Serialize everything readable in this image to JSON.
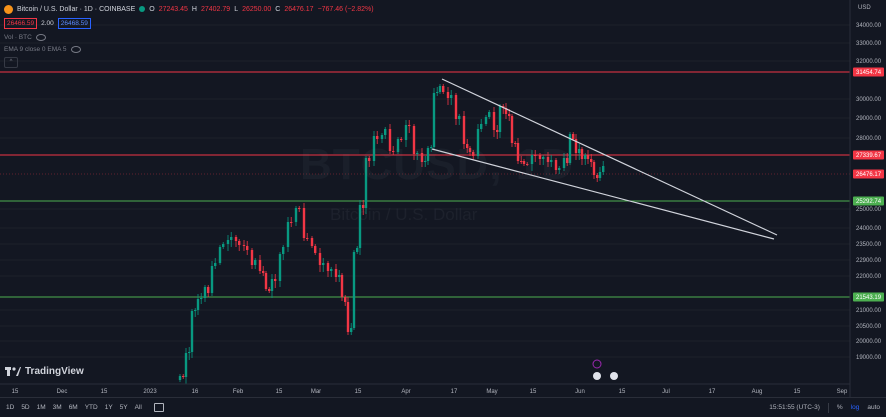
{
  "header": {
    "symbol_title": "Bitcoin / U.S. Dollar · 1D · COINBASE",
    "ohlc": {
      "o_label": "O",
      "o": "27243.45",
      "h_label": "H",
      "h": "27402.79",
      "l_label": "L",
      "l": "26250.00",
      "c_label": "C",
      "c": "26476.17",
      "change": "−767.46 (−2.82%)"
    },
    "sell_price": "26466.59",
    "spread": "2.00",
    "buy_price": "26468.59",
    "indicator_1": "Vol · BTC",
    "indicator_2": "EMA 9 close 0 EMA 5"
  },
  "watermark": {
    "line1": "BTCUSD, 1D",
    "line2": "Bitcoin / U.S. Dollar"
  },
  "logo_text": "TradingView",
  "price_axis": {
    "currency": "USD",
    "ticks": [
      "34000.00",
      "33000.00",
      "32000.00",
      "30000.00",
      "29000.00",
      "28000.00",
      "25000.00",
      "24000.00",
      "23500.00",
      "22900.00",
      "22000.00",
      "21000.00",
      "20500.00",
      "20000.00",
      "19000.00"
    ],
    "tags": [
      {
        "label": "31454.74",
        "color": "#f23645",
        "kind": "red_line"
      },
      {
        "label": "27339.67",
        "color": "#f23645",
        "kind": "red_line"
      },
      {
        "label": "26476.17",
        "color": "#f23645",
        "kind": "current"
      },
      {
        "label": "25292.74",
        "color": "#4caf50",
        "kind": "green_line"
      },
      {
        "label": "21543.19",
        "color": "#4caf50",
        "kind": "green_line"
      }
    ]
  },
  "time_axis": {
    "labels": [
      "15",
      "Dec",
      "15",
      "2023",
      "16",
      "Feb",
      "15",
      "Mar",
      "15",
      "Apr",
      "17",
      "May",
      "15",
      "Jun",
      "15",
      "Jul",
      "17",
      "Aug",
      "15",
      "Sep"
    ]
  },
  "toolbar": {
    "timeframes": [
      "1D",
      "5D",
      "1M",
      "3M",
      "6M",
      "YTD",
      "1Y",
      "5Y",
      "All"
    ],
    "clock": "15:51:55 (UTC-3)",
    "percent": "%",
    "log": "log",
    "auto": "auto"
  },
  "colors": {
    "up": "#089981",
    "down": "#f23645",
    "background": "#131722",
    "trendline": "#d1d4dc"
  }
}
